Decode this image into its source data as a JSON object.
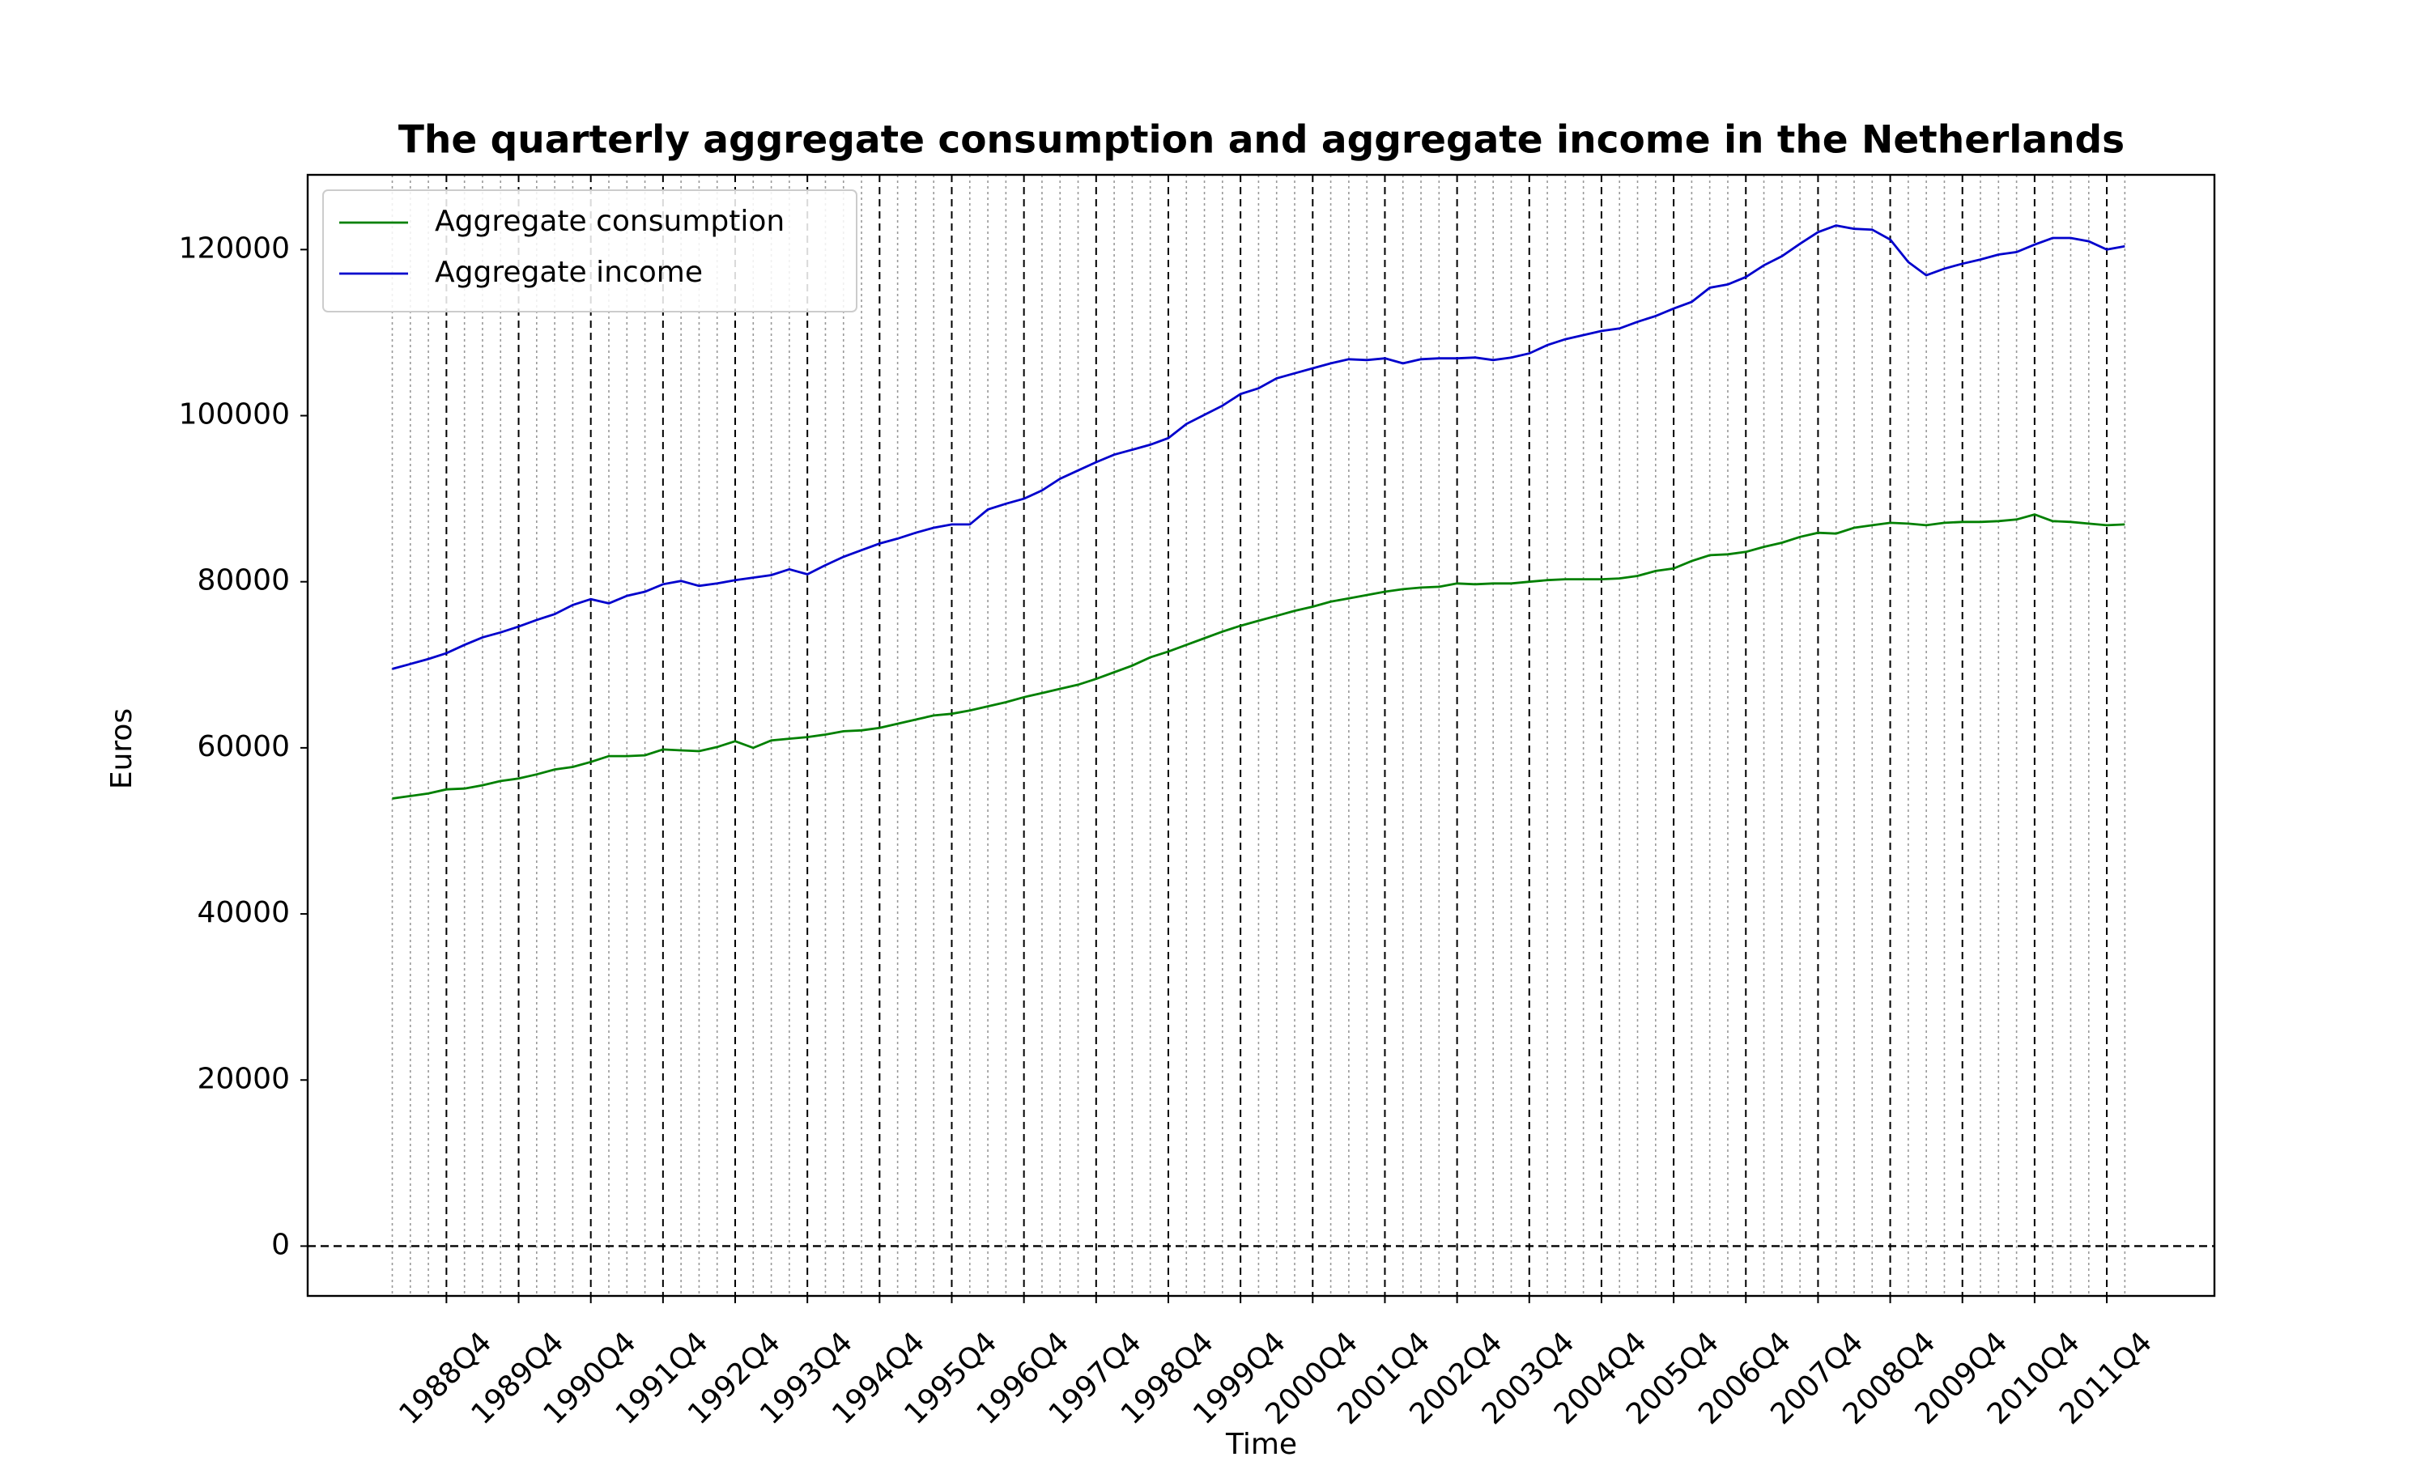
{
  "chart_data": {
    "type": "line",
    "title": "The quarterly aggregate consumption and aggregate income in the Netherlands",
    "x_label": "Time",
    "y_label": "Euros",
    "categories": [
      null,
      null,
      null,
      "1988Q4",
      null,
      null,
      null,
      "1989Q4",
      null,
      null,
      null,
      "1990Q4",
      null,
      null,
      null,
      "1991Q4",
      null,
      null,
      null,
      "1992Q4",
      null,
      null,
      null,
      "1993Q4",
      null,
      null,
      null,
      "1994Q4",
      null,
      null,
      null,
      "1995Q4",
      null,
      null,
      null,
      "1996Q4",
      null,
      null,
      null,
      "1997Q4",
      null,
      null,
      null,
      "1998Q4",
      null,
      null,
      null,
      "1999Q4",
      null,
      null,
      null,
      "2000Q4",
      null,
      null,
      null,
      "2001Q4",
      null,
      null,
      null,
      "2002Q4",
      null,
      null,
      null,
      "2003Q4",
      null,
      null,
      null,
      "2004Q4",
      null,
      null,
      null,
      "2005Q4",
      null,
      null,
      null,
      "2006Q4",
      null,
      null,
      null,
      "2007Q4",
      null,
      null,
      null,
      "2008Q4",
      null,
      null,
      null,
      "2009Q4",
      null,
      null,
      null,
      "2010Q4",
      null,
      null,
      null,
      "2011Q4",
      null
    ],
    "series": [
      {
        "name": "Aggregate consumption",
        "color": "#008000",
        "values": [
          53900,
          54200,
          54500,
          55000,
          55100,
          55500,
          56000,
          56300,
          56800,
          57400,
          57700,
          58300,
          59000,
          59000,
          59100,
          59800,
          59700,
          59600,
          60100,
          60800,
          60000,
          60900,
          61100,
          61300,
          61600,
          62000,
          62100,
          62400,
          62900,
          63400,
          63900,
          64100,
          64500,
          65000,
          65500,
          66100,
          66600,
          67100,
          67600,
          68300,
          69100,
          69900,
          70900,
          71600,
          72400,
          73200,
          74000,
          74700,
          75300,
          75900,
          76500,
          77000,
          77600,
          78000,
          78400,
          78800,
          79100,
          79300,
          79400,
          79800,
          79700,
          79800,
          79800,
          80000,
          80200,
          80300,
          80300,
          80300,
          80400,
          80700,
          81300,
          81600,
          82500,
          83200,
          83300,
          83600,
          84200,
          84700,
          85400,
          85900,
          85800,
          86500,
          86800,
          87100,
          87000,
          86800,
          87100,
          87200,
          87200,
          87300,
          87500,
          88100,
          87300,
          87200,
          87000,
          86800,
          86900
        ]
      },
      {
        "name": "Aggregate income",
        "color": "#0000cc",
        "values": [
          69500,
          70100,
          70700,
          71400,
          72400,
          73300,
          73900,
          74600,
          75400,
          76100,
          77200,
          77900,
          77400,
          78300,
          78800,
          79700,
          80100,
          79500,
          79800,
          80200,
          80500,
          80800,
          81500,
          80900,
          82000,
          83000,
          83800,
          84600,
          85200,
          85900,
          86500,
          86900,
          86900,
          88700,
          89400,
          90000,
          91000,
          92400,
          93400,
          94400,
          95300,
          95900,
          96500,
          97300,
          99000,
          100100,
          101200,
          102600,
          103300,
          104500,
          105100,
          105700,
          106300,
          106800,
          106700,
          106900,
          106300,
          106800,
          106900,
          106900,
          107000,
          106700,
          107000,
          107500,
          108500,
          109200,
          109700,
          110200,
          110500,
          111300,
          112000,
          112900,
          113700,
          115400,
          115800,
          116700,
          118100,
          119200,
          120700,
          122100,
          122900,
          122500,
          122400,
          121200,
          118500,
          116900,
          117700,
          118300,
          118800,
          119400,
          119700,
          120600,
          121400,
          121400,
          121000,
          120000,
          120400
        ]
      }
    ],
    "ylim": [
      -6000,
      129000
    ],
    "yticks": [
      0,
      20000,
      40000,
      60000,
      80000,
      100000,
      120000
    ],
    "hline": 0,
    "legend": "upper left",
    "x_grid": true
  }
}
